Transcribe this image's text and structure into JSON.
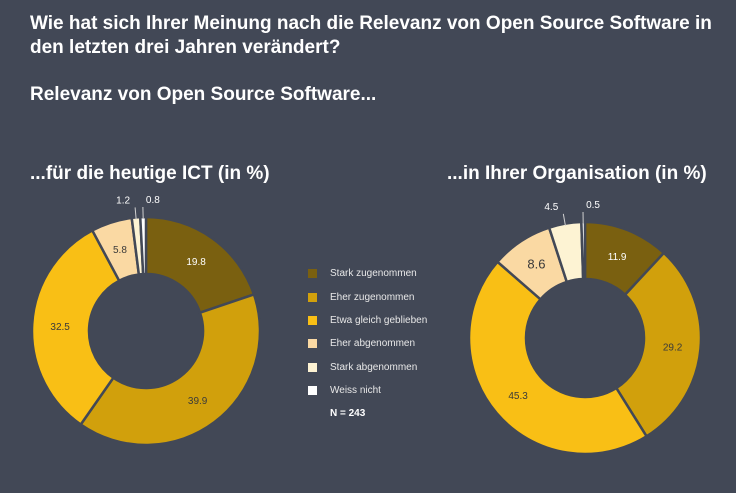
{
  "header": {
    "question": "Wie hat sich Ihrer Meinung nach die Relevanz von Open Source Software in den letzten drei Jahren verändert?",
    "subtitle": "Relevanz von Open Source Software..."
  },
  "legend": {
    "n_label": "N = 243"
  },
  "chart_data": [
    {
      "type": "pie",
      "title": "...für die heutige ICT (in %)",
      "categories": [
        "Stark zugenommen",
        "Eher zugenommen",
        "Etwa gleich geblieben",
        "Eher abgenommen",
        "Stark abgenommen",
        "Weiss nicht"
      ],
      "values": [
        19.8,
        39.9,
        32.5,
        5.8,
        1.2,
        0.8
      ],
      "value_labels": [
        "19.8",
        "39.9",
        "32.5",
        "5.8",
        "1.2",
        "0.8"
      ],
      "colors": [
        "#7a6010",
        "#d1a00c",
        "#f9bf15",
        "#fad9a3",
        "#fdf3d3",
        "#ffffff"
      ],
      "legend_position": "center"
    },
    {
      "type": "pie",
      "title": "...in Ihrer Organisation (in %)",
      "categories": [
        "Stark zugenommen",
        "Eher zugenommen",
        "Etwa gleich geblieben",
        "Eher abgenommen",
        "Stark abgenommen",
        "Weiss nicht"
      ],
      "values": [
        11.9,
        29.2,
        45.3,
        8.6,
        4.5,
        0.5
      ],
      "value_labels": [
        "11.9",
        "29.2",
        "45.3",
        "8.6",
        "4.5",
        "0.5"
      ],
      "colors": [
        "#7a6010",
        "#d1a00c",
        "#f9bf15",
        "#fad9a3",
        "#fdf3d3",
        "#ffffff"
      ],
      "legend_position": "center"
    }
  ]
}
